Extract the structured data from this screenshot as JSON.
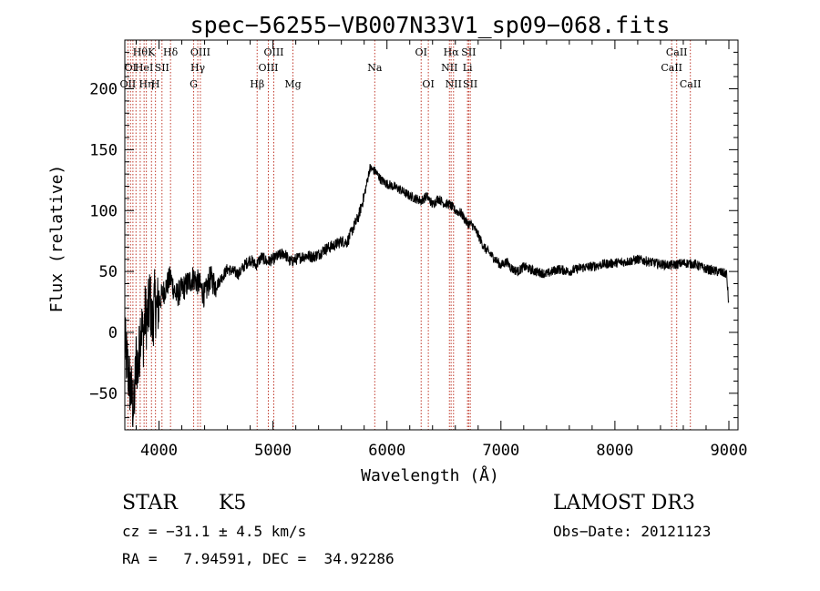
{
  "chart_data": {
    "type": "line",
    "title": "spec−56255−VB007N33V1_sp09−068.fits",
    "xlabel": "Wavelength (Å)",
    "ylabel": "Flux (relative)",
    "xlim": [
      3700,
      9080
    ],
    "ylim": [
      -80,
      240
    ],
    "xticks": [
      4000,
      5000,
      6000,
      7000,
      8000,
      9000
    ],
    "xtick_labels": [
      "4000",
      "5000",
      "6000",
      "7000",
      "8000",
      "9000"
    ],
    "yticks": [
      -50,
      0,
      50,
      100,
      150,
      200
    ],
    "ytick_labels": [
      "−50",
      "0",
      "50",
      "100",
      "150",
      "200"
    ],
    "series": [
      {
        "name": "flux",
        "x": [
          3700,
          3740,
          3780,
          3800,
          3820,
          3840,
          3860,
          3880,
          3900,
          3920,
          3940,
          3960,
          3980,
          4000,
          4050,
          4100,
          4150,
          4200,
          4250,
          4300,
          4350,
          4400,
          4450,
          4500,
          4550,
          4600,
          4650,
          4700,
          4750,
          4800,
          4850,
          4900,
          4950,
          5000,
          5050,
          5100,
          5150,
          5200,
          5250,
          5300,
          5350,
          5400,
          5450,
          5500,
          5550,
          5600,
          5650,
          5700,
          5750,
          5800,
          5850,
          5900,
          5950,
          6000,
          6050,
          6100,
          6150,
          6200,
          6250,
          6300,
          6350,
          6400,
          6450,
          6500,
          6550,
          6600,
          6650,
          6700,
          6750,
          6800,
          6850,
          6900,
          6950,
          7000,
          7050,
          7100,
          7150,
          7200,
          7300,
          7400,
          7500,
          7600,
          7700,
          7800,
          7900,
          8000,
          8100,
          8200,
          8300,
          8400,
          8500,
          8600,
          8700,
          8800,
          8900,
          8980,
          9000
        ],
        "y": [
          -10,
          -40,
          -65,
          -20,
          -30,
          10,
          -5,
          15,
          10,
          30,
          5,
          25,
          20,
          25,
          35,
          45,
          30,
          35,
          40,
          45,
          40,
          30,
          45,
          38,
          45,
          52,
          50,
          48,
          55,
          60,
          55,
          62,
          58,
          60,
          63,
          65,
          58,
          60,
          62,
          63,
          62,
          64,
          68,
          70,
          72,
          75,
          74,
          85,
          95,
          112,
          135,
          132,
          125,
          122,
          120,
          118,
          115,
          112,
          110,
          108,
          112,
          105,
          110,
          106,
          105,
          100,
          98,
          90,
          88,
          80,
          70,
          65,
          60,
          55,
          58,
          52,
          50,
          54,
          50,
          48,
          52,
          50,
          53,
          54,
          56,
          57,
          58,
          60,
          58,
          56,
          55,
          57,
          56,
          52,
          50,
          48,
          22
        ]
      }
    ],
    "lines": [
      {
        "x": 3727,
        "label": "OII",
        "row": 2
      },
      {
        "x": 3750,
        "label": "OⅠ",
        "row": 1
      },
      {
        "x": 3771,
        "label": "",
        "row": 0
      },
      {
        "x": 3798,
        "label": "",
        "row": 0
      },
      {
        "x": 3835,
        "label": "Hθ",
        "row": 0
      },
      {
        "x": 3869,
        "label": "HeI",
        "row": 1
      },
      {
        "x": 3889,
        "label": "Hη",
        "row": 2
      },
      {
        "x": 3934,
        "label": "K",
        "row": 0
      },
      {
        "x": 3969,
        "label": "H",
        "row": 2
      },
      {
        "x": 4026,
        "label": "SII",
        "row": 1
      },
      {
        "x": 4101,
        "label": "Hδ",
        "row": 0
      },
      {
        "x": 4304,
        "label": "G",
        "row": 2
      },
      {
        "x": 4340,
        "label": "Hγ",
        "row": 1
      },
      {
        "x": 4363,
        "label": "OIII",
        "row": 0
      },
      {
        "x": 4861,
        "label": "Hβ",
        "row": 2
      },
      {
        "x": 4959,
        "label": "OIII",
        "row": 1
      },
      {
        "x": 5007,
        "label": "OIII",
        "row": 0
      },
      {
        "x": 5175,
        "label": "Mg",
        "row": 2
      },
      {
        "x": 5893,
        "label": "Na",
        "row": 1
      },
      {
        "x": 6300,
        "label": "OI",
        "row": 0
      },
      {
        "x": 6363,
        "label": "OI",
        "row": 2
      },
      {
        "x": 6548,
        "label": "NII",
        "row": 1
      },
      {
        "x": 6563,
        "label": "Hα",
        "row": 0
      },
      {
        "x": 6584,
        "label": "NII",
        "row": 2
      },
      {
        "x": 6707,
        "label": "Li",
        "row": 1
      },
      {
        "x": 6717,
        "label": "SII",
        "row": 0
      },
      {
        "x": 6731,
        "label": "SII",
        "row": 2
      },
      {
        "x": 8498,
        "label": "CaII",
        "row": 1
      },
      {
        "x": 8542,
        "label": "CaII",
        "row": 0
      },
      {
        "x": 8662,
        "label": "CaII",
        "row": 2
      }
    ]
  },
  "info": {
    "class_label": "STAR",
    "subclass": "K5",
    "survey": "LAMOST DR3",
    "cz": "cz = −31.1 ± 4.5 km/s",
    "obs_date": "Obs−Date: 20121123",
    "coords": "RA =   7.94591, DEC =  34.92286"
  }
}
